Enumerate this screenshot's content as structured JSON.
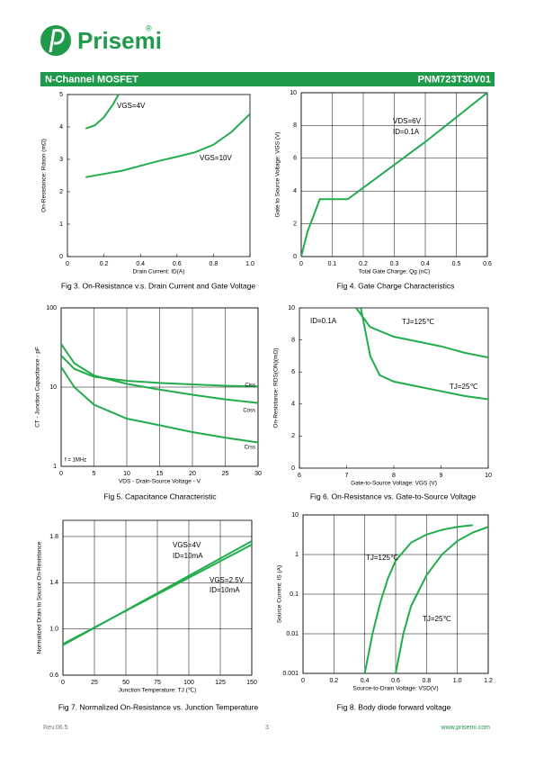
{
  "header": {
    "logo": "Prisemi",
    "registered": "®",
    "left": "N-Channel MOSFET",
    "right": "PNM723T30V01"
  },
  "footer": {
    "left": "Rev.06.5",
    "center": "3",
    "right": "www.prisemi.com"
  },
  "chart_data": [
    {
      "type": "line",
      "caption": "Fig 3. On-Resistance v.s. Drain Current and Gate Voltage",
      "xlabel": "Drain Current: ID(A)",
      "ylabel": "On-Resistance: Rdson (mΩ)",
      "xlim": [
        0,
        1
      ],
      "ylim": [
        0,
        5
      ],
      "xticks": [
        0,
        0.2,
        0.4,
        0.6,
        0.8,
        {
          "value": 1,
          "label": "1.0"
        }
      ],
      "yticks": [
        0,
        1,
        2,
        3,
        4,
        5
      ],
      "grid": false,
      "series": [
        {
          "name": "VGS=4V",
          "color": "#22ad4c",
          "x": [
            0.1,
            0.15,
            0.2,
            0.25,
            0.28
          ],
          "values": [
            3.95,
            4.05,
            4.3,
            4.7,
            5.0
          ]
        },
        {
          "name": "VGS=10V",
          "color": "#22ad4c",
          "x": [
            0.1,
            0.2,
            0.3,
            0.4,
            0.5,
            0.6,
            0.7,
            0.8,
            0.9,
            1.0
          ],
          "values": [
            2.45,
            2.55,
            2.65,
            2.8,
            2.95,
            3.08,
            3.22,
            3.45,
            3.85,
            4.4
          ]
        }
      ],
      "annotations": []
    },
    {
      "type": "line",
      "caption": "Fig 4. Gate Charge Characteristics",
      "xlabel": "Total Gate Charge: Qg (nC)",
      "ylabel": "Gate to Source Voltage: VGS (V)",
      "xlim": [
        0,
        0.6
      ],
      "ylim": [
        0,
        10
      ],
      "xticks": [
        0,
        0.1,
        0.2,
        0.3,
        0.4,
        0.5,
        0.6
      ],
      "yticks": [
        0,
        2,
        4,
        6,
        8,
        10
      ],
      "grid": true,
      "series": [
        {
          "name": "VGS",
          "color": "#22ad4c",
          "x": [
            0,
            0.02,
            0.06,
            0.15,
            0.2,
            0.3,
            0.4,
            0.5,
            0.6
          ],
          "values": [
            0,
            1.5,
            3.5,
            3.5,
            4.2,
            5.6,
            7.0,
            8.5,
            10
          ]
        }
      ],
      "annotations": [
        "VDS=6V",
        "ID=0.1A"
      ]
    },
    {
      "type": "line",
      "caption": "Fig 5. Capacitance Characteristic",
      "xlabel": "VDS - Drain-Source Voltage - V",
      "ylabel": "CT - Junction Capacitance - pF",
      "xlim": [
        0,
        30
      ],
      "ylim": [
        1,
        100
      ],
      "ylog": true,
      "xticks": [
        0,
        5,
        10,
        15,
        20,
        25,
        30
      ],
      "yticks": [
        1,
        10,
        100
      ],
      "grid": true,
      "series": [
        {
          "name": "Ciss",
          "color": "#22ad4c",
          "x": [
            0,
            2,
            5,
            10,
            15,
            20,
            25,
            30
          ],
          "values": [
            25,
            17,
            13.5,
            12,
            11.3,
            10.8,
            10.4,
            10.2
          ]
        },
        {
          "name": "Coss",
          "color": "#22ad4c",
          "x": [
            0,
            2,
            5,
            10,
            15,
            20,
            25,
            30
          ],
          "values": [
            35,
            20,
            14,
            11,
            9.3,
            8,
            7,
            6.3
          ]
        },
        {
          "name": "Crss",
          "color": "#22ad4c",
          "x": [
            0,
            2,
            5,
            10,
            15,
            20,
            25,
            30
          ],
          "values": [
            18,
            10,
            6,
            4,
            3.3,
            2.7,
            2.3,
            2
          ]
        }
      ],
      "annotations": [
        "f = 1MHz"
      ]
    },
    {
      "type": "line",
      "caption": "Fig 6. On-Resistance vs. Gate-to-Source Voltage",
      "xlabel": "Gate-to-Source Voltage: VGS (V)",
      "ylabel": "On-Resistance: RDS(ON)(mΩ)",
      "xlim": [
        6,
        10
      ],
      "ylim": [
        0,
        10
      ],
      "xticks": [
        6,
        7,
        8,
        9,
        10
      ],
      "yticks": [
        0,
        2,
        4,
        6,
        8,
        10
      ],
      "grid": false,
      "series": [
        {
          "name": "TJ=125℃",
          "color": "#22ad4c",
          "x": [
            7.2,
            7.5,
            8,
            8.5,
            9,
            9.5,
            10
          ],
          "values": [
            10,
            8.8,
            8.2,
            7.9,
            7.6,
            7.2,
            6.9
          ]
        },
        {
          "name": "TJ=25℃",
          "color": "#22ad4c",
          "x": [
            7.3,
            7.5,
            7.7,
            8,
            8.5,
            9,
            9.5,
            10
          ],
          "values": [
            10,
            7,
            5.8,
            5.4,
            5.1,
            4.8,
            4.5,
            4.3
          ]
        }
      ],
      "annotations": [
        "ID=0.1A"
      ]
    },
    {
      "type": "line",
      "caption": "Fig 7. Normalized On-Resistance vs. Junction Temperature",
      "xlabel": "Junction Temperature: TJ (℃)",
      "ylabel": "Normalized Drain to Source On-Resistance",
      "xlim": [
        0,
        150
      ],
      "ylim": [
        0.6,
        1.94
      ],
      "xticks": [
        0,
        25,
        50,
        75,
        100,
        125,
        150
      ],
      "yticks": [
        0.6,
        {
          "value": 1,
          "label": "1.0"
        },
        1.4,
        1.8
      ],
      "grid": true,
      "series": [
        {
          "name": "VGS=4V",
          "color": "#22ad4c",
          "x": [
            0,
            150
          ],
          "values": [
            0.86,
            1.76
          ]
        },
        {
          "name": "VGS=2.5V",
          "color": "#22ad4c",
          "x": [
            0,
            150
          ],
          "values": [
            0.87,
            1.73
          ]
        }
      ],
      "annotations": [
        "ID=10mA",
        "ID=10mA"
      ]
    },
    {
      "type": "line",
      "caption": "Fig 8. Body diode forward voltage",
      "xlabel": "Source-to-Drain Voltage: VSD(V)",
      "ylabel": "Source Current: IS (A)",
      "xlim": [
        0,
        1.2
      ],
      "ylim": [
        0.001,
        10
      ],
      "ylog": true,
      "xticks": [
        0,
        0.2,
        0.4,
        0.6,
        0.8,
        {
          "value": 1,
          "label": "1.0"
        },
        1.2
      ],
      "yticks": [
        0.001,
        0.01,
        0.1,
        1,
        10
      ],
      "grid": true,
      "series": [
        {
          "name": "TJ=125℃",
          "color": "#22ad4c",
          "x": [
            0.4,
            0.45,
            0.5,
            0.55,
            0.6,
            0.7,
            0.8,
            0.9,
            1.0,
            1.1
          ],
          "values": [
            0.001,
            0.01,
            0.06,
            0.25,
            0.7,
            2,
            3.2,
            4.2,
            5,
            5.5
          ]
        },
        {
          "name": "TJ=25℃",
          "color": "#22ad4c",
          "x": [
            0.6,
            0.65,
            0.7,
            0.8,
            0.9,
            1.0,
            1.1,
            1.2
          ],
          "values": [
            0.001,
            0.01,
            0.05,
            0.3,
            1,
            2.2,
            3.6,
            5
          ]
        }
      ],
      "annotations": []
    }
  ]
}
